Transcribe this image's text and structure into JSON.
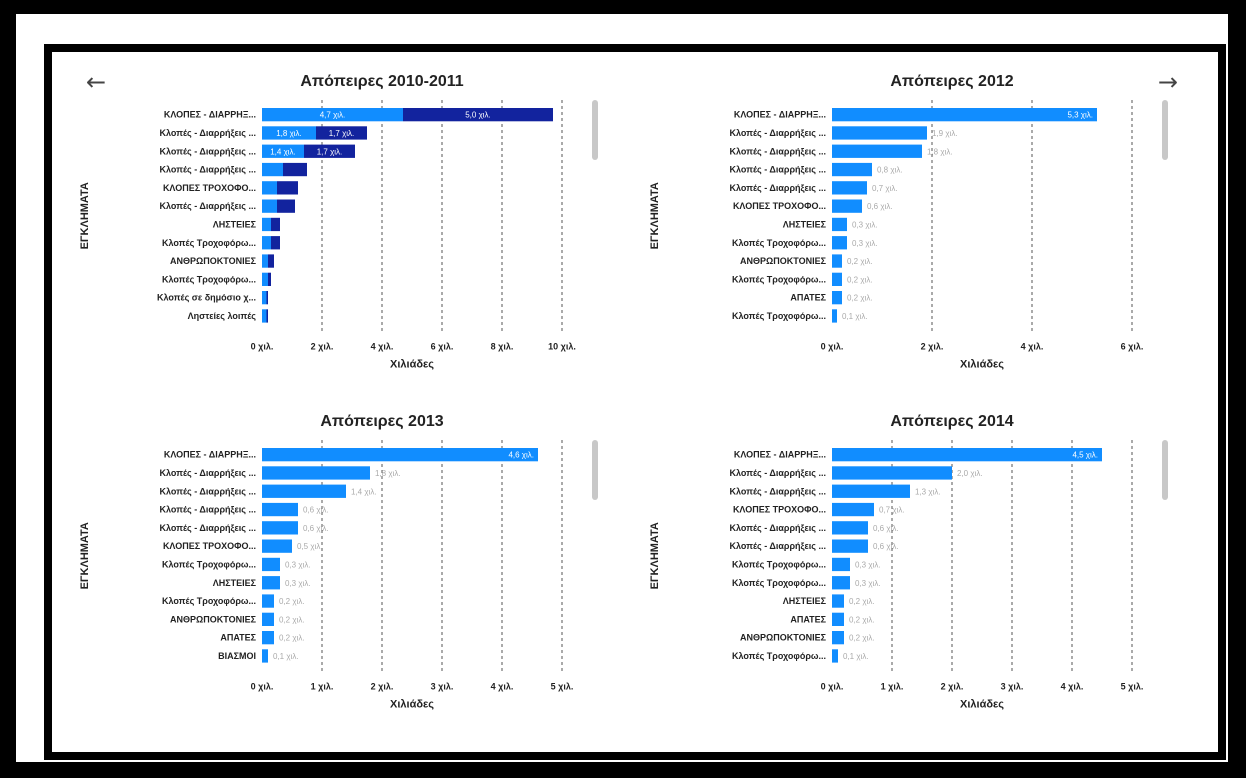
{
  "nav": {
    "back_icon": "left-arrow-icon",
    "forward_icon": "right-arrow-icon",
    "back_glyph": "←",
    "forward_glyph": "→"
  },
  "colors": {
    "primary": "#118DFF",
    "secondary": "#12239E",
    "label_dark": "#222222",
    "label_muted": "#aaaaaa"
  },
  "chart_data": [
    {
      "type": "bar",
      "orientation": "horizontal",
      "stacked": true,
      "title": "Απόπειρες 2010-2011",
      "xlabel": "Χιλιάδες",
      "ylabel": "ΕΓΚΛΗΜΑΤΑ",
      "categories": [
        "ΚΛΟΠΕΣ - ΔΙΑΡΡΗΞ...",
        "Κλοπές - Διαρρήξεις ...",
        "Κλοπές - Διαρρήξεις ...",
        "Κλοπές - Διαρρήξεις ...",
        "ΚΛΟΠΕΣ ΤΡΟΧΟΦΟ...",
        "Κλοπές - Διαρρήξεις ...",
        "ΛΗΣΤΕΙΕΣ",
        "Κλοπές Τροχοφόρω...",
        "ΑΝΘΡΩΠΟΚΤΟΝΙΕΣ",
        "Κλοπές Τροχοφόρω...",
        "Κλοπές σε δημόσιο χ...",
        "Ληστείες λοιπές"
      ],
      "series": [
        {
          "values": [
            4.7,
            1.8,
            1.4,
            0.7,
            0.5,
            0.5,
            0.3,
            0.3,
            0.2,
            0.2,
            0.15,
            0.15
          ],
          "labels": [
            "4,7 χιλ.",
            "1,8 χιλ.",
            "1,4 χιλ.",
            "",
            "",
            "",
            "",
            "",
            "",
            "",
            "",
            ""
          ]
        },
        {
          "values": [
            5.0,
            1.7,
            1.7,
            0.8,
            0.7,
            0.6,
            0.3,
            0.3,
            0.2,
            0.1,
            0.05,
            0.05
          ],
          "labels": [
            "5,0 χιλ.",
            "1,7 χιλ.",
            "1,7 χιλ.",
            "",
            "",
            "",
            "",
            "",
            "",
            "",
            "",
            ""
          ]
        }
      ],
      "xlim": [
        0,
        10
      ],
      "ticks": [
        0,
        2,
        4,
        6,
        8,
        10
      ],
      "tick_labels": [
        "0 χιλ.",
        "2 χιλ.",
        "4 χιλ.",
        "6 χιλ.",
        "8 χιλ.",
        "10 χιλ."
      ],
      "grid": true
    },
    {
      "type": "bar",
      "orientation": "horizontal",
      "title": "Απόπειρες 2012",
      "xlabel": "Χιλιάδες",
      "ylabel": "ΕΓΚΛΗΜΑΤΑ",
      "categories": [
        "ΚΛΟΠΕΣ - ΔΙΑΡΡΗΞ...",
        "Κλοπές - Διαρρήξεις ...",
        "Κλοπές - Διαρρήξεις ...",
        "Κλοπές - Διαρρήξεις ...",
        "Κλοπές - Διαρρήξεις ...",
        "ΚΛΟΠΕΣ ΤΡΟΧΟΦΟ...",
        "ΛΗΣΤΕΙΕΣ",
        "Κλοπές Τροχοφόρω...",
        "ΑΝΘΡΩΠΟΚΤΟΝΙΕΣ",
        "Κλοπές Τροχοφόρω...",
        "ΑΠΑΤΕΣ",
        "Κλοπές Τροχοφόρω..."
      ],
      "series": [
        {
          "values": [
            5.3,
            1.9,
            1.8,
            0.8,
            0.7,
            0.6,
            0.3,
            0.3,
            0.2,
            0.2,
            0.2,
            0.1
          ],
          "labels": [
            "5,3 χιλ.",
            "1,9 χιλ.",
            "1,8 χιλ.",
            "0,8 χιλ.",
            "0,7 χιλ.",
            "0,6 χιλ.",
            "0,3 χιλ.",
            "0,3 χιλ.",
            "0,2 χιλ.",
            "0,2 χιλ.",
            "0,2 χιλ.",
            "0,1 χιλ."
          ]
        }
      ],
      "xlim": [
        0,
        6
      ],
      "ticks": [
        0,
        2,
        4,
        6
      ],
      "tick_labels": [
        "0 χιλ.",
        "2 χιλ.",
        "4 χιλ.",
        "6 χιλ."
      ],
      "grid": true
    },
    {
      "type": "bar",
      "orientation": "horizontal",
      "title": "Απόπειρες 2013",
      "xlabel": "Χιλιάδες",
      "ylabel": "ΕΓΚΛΗΜΑΤΑ",
      "categories": [
        "ΚΛΟΠΕΣ - ΔΙΑΡΡΗΞ...",
        "Κλοπές - Διαρρήξεις ...",
        "Κλοπές - Διαρρήξεις ...",
        "Κλοπές - Διαρρήξεις ...",
        "Κλοπές - Διαρρήξεις ...",
        "ΚΛΟΠΕΣ ΤΡΟΧΟΦΟ...",
        "Κλοπές Τροχοφόρω...",
        "ΛΗΣΤΕΙΕΣ",
        "Κλοπές Τροχοφόρω...",
        "ΑΝΘΡΩΠΟΚΤΟΝΙΕΣ",
        "ΑΠΑΤΕΣ",
        "ΒΙΑΣΜΟΙ"
      ],
      "series": [
        {
          "values": [
            4.6,
            1.8,
            1.4,
            0.6,
            0.6,
            0.5,
            0.3,
            0.3,
            0.2,
            0.2,
            0.2,
            0.1
          ],
          "labels": [
            "4,6 χιλ.",
            "1,8 χιλ.",
            "1,4 χιλ.",
            "0,6 χιλ.",
            "0,6 χιλ.",
            "0,5 χιλ.",
            "0,3 χιλ.",
            "0,3 χιλ.",
            "0,2 χιλ.",
            "0,2 χιλ.",
            "0,2 χιλ.",
            "0,1 χιλ."
          ]
        }
      ],
      "xlim": [
        0,
        5
      ],
      "ticks": [
        0,
        1,
        2,
        3,
        4,
        5
      ],
      "tick_labels": [
        "0 χιλ.",
        "1 χιλ.",
        "2 χιλ.",
        "3 χιλ.",
        "4 χιλ.",
        "5 χιλ."
      ],
      "grid": true
    },
    {
      "type": "bar",
      "orientation": "horizontal",
      "title": "Απόπειρες 2014",
      "xlabel": "Χιλιάδες",
      "ylabel": "ΕΓΚΛΗΜΑΤΑ",
      "categories": [
        "ΚΛΟΠΕΣ - ΔΙΑΡΡΗΞ...",
        "Κλοπές - Διαρρήξεις ...",
        "Κλοπές - Διαρρήξεις ...",
        "ΚΛΟΠΕΣ ΤΡΟΧΟΦΟ...",
        "Κλοπές - Διαρρήξεις ...",
        "Κλοπές - Διαρρήξεις ...",
        "Κλοπές Τροχοφόρω...",
        "Κλοπές Τροχοφόρω...",
        "ΛΗΣΤΕΙΕΣ",
        "ΑΠΑΤΕΣ",
        "ΑΝΘΡΩΠΟΚΤΟΝΙΕΣ",
        "Κλοπές Τροχοφόρω..."
      ],
      "series": [
        {
          "values": [
            4.5,
            2.0,
            1.3,
            0.7,
            0.6,
            0.6,
            0.3,
            0.3,
            0.2,
            0.2,
            0.2,
            0.1
          ],
          "labels": [
            "4,5 χιλ.",
            "2,0 χιλ.",
            "1,3 χιλ.",
            "0,7 χιλ.",
            "0,6 χιλ.",
            "0,6 χιλ.",
            "0,3 χιλ.",
            "0,3 χιλ.",
            "0,2 χιλ.",
            "0,2 χιλ.",
            "0,2 χιλ.",
            "0,1 χιλ."
          ]
        }
      ],
      "xlim": [
        0,
        5
      ],
      "ticks": [
        0,
        1,
        2,
        3,
        4,
        5
      ],
      "tick_labels": [
        "0 χιλ.",
        "1 χιλ.",
        "2 χιλ.",
        "3 χιλ.",
        "4 χιλ.",
        "5 χιλ."
      ],
      "grid": true
    }
  ]
}
